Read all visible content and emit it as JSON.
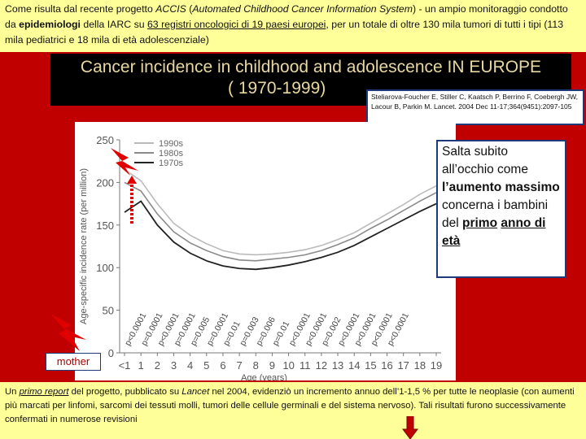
{
  "top_text": {
    "p1": "Come risulta dal recente progetto ",
    "p2": "ACCIS",
    "p3": " (",
    "p4": "Automated Childhood Cancer Information System",
    "p5": ") - un ampio monitoraggio condotto da ",
    "p6": "epidemiologi",
    "p7": " della IARC su ",
    "p8": "63 registri oncologici di 19 paesi europei",
    "p9": ", per un totale di oltre 130 mila tumori di tutti i tipi (113 mila pediatrici e 18 mila di età adolescenziale)"
  },
  "title": {
    "line1": "Cancer incidence in childhood and adolescence IN EUROPE",
    "line2": "( 1970-1999)"
  },
  "citation": "Steliarova-Foucher E, Stiller C, Kaatsch P, Berrino F, Coebergh JW, Lacour B, Parkin M. Lancet. 2004 Dec 11-17;364(9451):2097-105",
  "callout": {
    "c1": "Salta subito all’occhio come ",
    "c2": "l’aumento massimo",
    "c3": " concerna i bambini del ",
    "c4": "primo",
    "c5": " ",
    "c6": "anno di età"
  },
  "mother_label": "mother",
  "bottom_text": {
    "b1": "Un ",
    "b2": "primo report",
    "b3": " del progetto, pubblicato su ",
    "b4": "Lancet",
    "b5": " nel 2004, evidenziò un incremento annuo dell’1-1,5 % per tutte le neoplasie (con aumenti più marcati per linfomi, sarcomi dei tessuti molli, tumori delle cellule germinali e del sistema nervoso). Tali risultati furono successivamente confermati in numerose revisioni"
  },
  "colors": {
    "accent_red": "#c00000",
    "highlight_yellow": "#ffff99",
    "title_gold": "#e8d8a0"
  },
  "icons": [
    "lightning-bolt-icon",
    "dotted-arrow-icon",
    "lightning-bolt-icon",
    "down-arrow-icon"
  ],
  "chart_data": {
    "type": "line",
    "ylabel": "Age-specific incidence rate (per million)",
    "xlabel": "Age (years)",
    "ylim": [
      0,
      250
    ],
    "yticks": [
      0,
      50,
      100,
      150,
      200,
      250
    ],
    "categories": [
      "<1",
      "1",
      "2",
      "3",
      "4",
      "5",
      "6",
      "7",
      "8",
      "9",
      "10",
      "11",
      "12",
      "13",
      "14",
      "15",
      "16",
      "17",
      "18",
      "19"
    ],
    "series": [
      {
        "name": "1990s",
        "values": [
          215,
          202,
          175,
          152,
          138,
          128,
          120,
          116,
          115,
          116,
          118,
          121,
          126,
          133,
          141,
          152,
          163,
          174,
          186,
          196
        ]
      },
      {
        "name": "1980s",
        "values": [
          200,
          190,
          163,
          142,
          129,
          120,
          113,
          109,
          108,
          110,
          112,
          115,
          120,
          127,
          135,
          146,
          156,
          167,
          178,
          188
        ]
      },
      {
        "name": "1970s",
        "values": [
          165,
          178,
          150,
          130,
          117,
          108,
          102,
          99,
          98,
          100,
          103,
          107,
          112,
          118,
          126,
          136,
          146,
          156,
          166,
          175
        ]
      }
    ],
    "pvalues": [
      "p<0.0001",
      "p=0.0001",
      "p<0.0001",
      "p=0.0001",
      "p=0.005",
      "p=0.0001",
      "p=0.01",
      "p=0.003",
      "p=0.006",
      "p=0.01",
      "p<0.0001",
      "p<0.0001",
      "p=0.002",
      "p<0.0001",
      "p<0.0001",
      "p<0.0001",
      "p<0.0001"
    ]
  }
}
